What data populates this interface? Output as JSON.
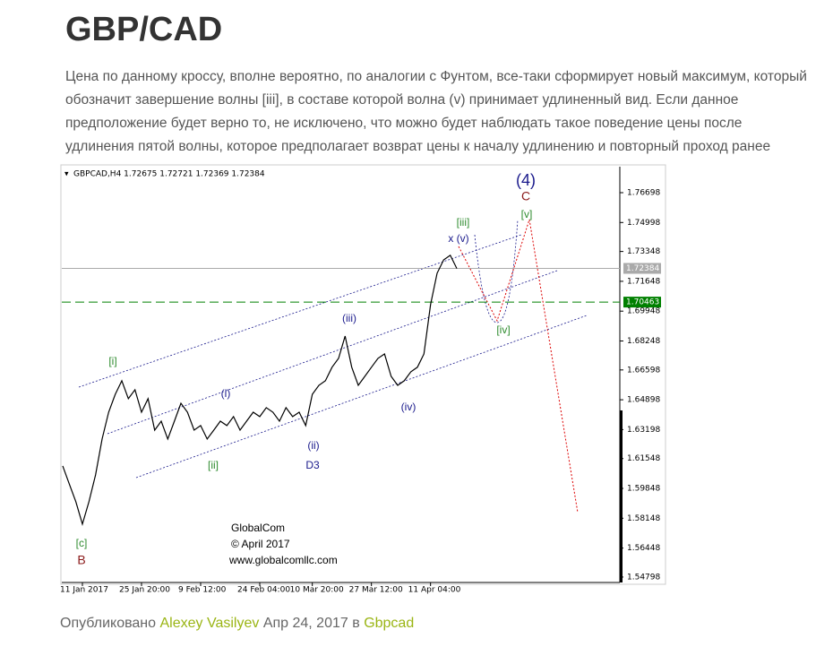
{
  "header": {
    "title": "GBP/CAD"
  },
  "body": {
    "lines": [
      "Цена по данному кроссу, вполне вероятно, по аналогии с Фунтом, все-таки сформирует новый максимум, который",
      "обозначит завершение волны [iii], в составе которой волна (v) принимает удлиненный вид. Если данное",
      "предположение будет верно то, не исключено, что можно будет наблюдать такое поведение цены после",
      "удлинения пятой волны, которое предполагает возврат цены к началу удлинению и повторный проход ранее"
    ]
  },
  "chart_data": {
    "type": "line",
    "title": "GBPCAD,H4  1.72675 1.72721 1.72369 1.72384",
    "color": "#000000",
    "categories": [
      null,
      null,
      null,
      "11 Jan 2017",
      null,
      null,
      null,
      null,
      null,
      null,
      null,
      null,
      "25 Jan 20:00",
      null,
      null,
      null,
      null,
      null,
      null,
      null,
      null,
      "9 Feb 12:00",
      null,
      null,
      null,
      null,
      null,
      null,
      null,
      null,
      "24 Feb 04:00",
      null,
      null,
      null,
      null,
      null,
      null,
      null,
      "10 Mar 20:00",
      null,
      null,
      null,
      null,
      null,
      null,
      null,
      null,
      "27 Mar 12:00",
      null,
      null,
      null,
      null,
      null,
      null,
      null,
      null,
      "11 Apr 04:00",
      null,
      null,
      null,
      null
    ],
    "values": [
      1.6113,
      1.6011,
      1.5909,
      1.5781,
      1.5909,
      1.6062,
      1.6266,
      1.6419,
      1.6521,
      1.6598,
      1.6496,
      1.6547,
      1.6419,
      1.6496,
      1.6317,
      1.6368,
      1.6266,
      1.6368,
      1.647,
      1.6419,
      1.6317,
      1.6343,
      1.6266,
      1.6317,
      1.6368,
      1.6343,
      1.6394,
      1.6317,
      1.6368,
      1.6419,
      1.6394,
      1.6445,
      1.6419,
      1.6368,
      1.6445,
      1.6394,
      1.6419,
      1.6343,
      1.6521,
      1.6572,
      1.6598,
      1.6675,
      1.6726,
      1.6853,
      1.6675,
      1.6572,
      1.6623,
      1.6675,
      1.6726,
      1.6751,
      1.6623,
      1.6572,
      1.6598,
      1.6649,
      1.6675,
      1.6751,
      1.7032,
      1.7211,
      1.7287,
      1.7313,
      1.7238
    ],
    "ylim": [
      1.5459,
      1.7823
    ],
    "yticks": [
      1.76698,
      1.74998,
      1.73348,
      1.71648,
      1.69948,
      1.68248,
      1.66598,
      1.64898,
      1.63198,
      1.61548,
      1.59848,
      1.58148,
      1.56448,
      1.54798
    ],
    "hlines": [
      {
        "value": 1.72384,
        "color": "#aaaaaa"
      },
      {
        "value": 1.70463,
        "color": "#008000"
      }
    ],
    "annotations": [
      {
        "text": "[i]",
        "color": "#2e8b2e"
      },
      {
        "text": "(i)",
        "color": "#1a1a8c"
      },
      {
        "text": "[ii]",
        "color": "#2e8b2e"
      },
      {
        "text": "(ii)",
        "color": "#1a1a8c"
      },
      {
        "text": "D3",
        "color": "#1a1a8c"
      },
      {
        "text": "(iii)",
        "color": "#1a1a8c"
      },
      {
        "text": "(iv)",
        "color": "#1a1a8c"
      },
      {
        "text": "[iii]",
        "color": "#2e8b2e"
      },
      {
        "text": "x (v)",
        "color": "#1a1a8c"
      },
      {
        "text": "[iv]",
        "color": "#2e8b2e"
      },
      {
        "text": "(4)",
        "color": "#1a1a8c"
      },
      {
        "text": "C",
        "color": "#8b1a1a"
      },
      {
        "text": "[v]",
        "color": "#2e8b2e"
      },
      {
        "text": "[c]",
        "color": "#2e8b2e"
      },
      {
        "text": "B",
        "color": "#8b1a1a"
      }
    ],
    "watermark": [
      "GlobalCom",
      "© April 2017",
      "www.globalcomllc.com"
    ]
  },
  "footer": {
    "prefix": "Опубликовано",
    "author": "Alexey Vasilyev",
    "date": "Апр 24, 2017",
    "in": "в",
    "category": "Gbpcad"
  }
}
